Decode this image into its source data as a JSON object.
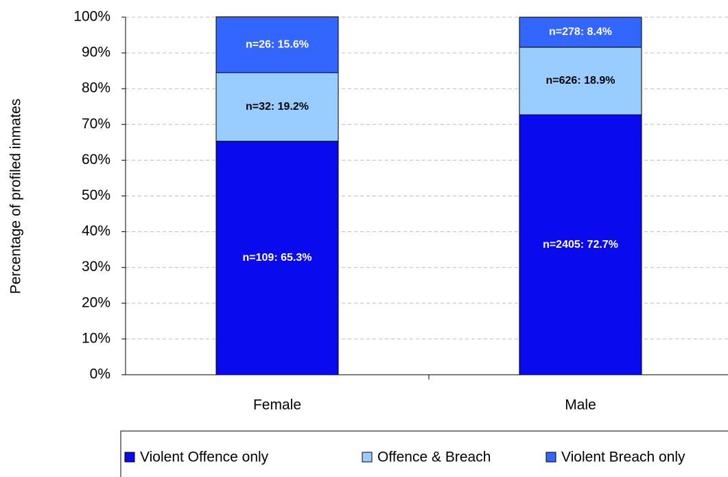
{
  "chart_data": {
    "type": "stacked_bar",
    "y_label": "Percentage of profiled inmates",
    "categories": [
      "Female",
      "Male"
    ],
    "series": [
      {
        "name": "Violent Offence only",
        "color": "#0a0aee",
        "label_color": "#ffffff",
        "values": [
          65.3,
          72.7
        ],
        "value_labels": [
          "n=109: 65.3%",
          "n=2405: 72.7%"
        ]
      },
      {
        "name": "Offence & Breach",
        "color": "#99ccff",
        "label_color": "#000000",
        "values": [
          19.2,
          18.9
        ],
        "value_labels": [
          "n=32: 19.2%",
          "n=626: 18.9%"
        ]
      },
      {
        "name": "Violent Breach only",
        "color": "#3366ff",
        "label_color": "#ffffff",
        "values": [
          15.6,
          8.4
        ],
        "value_labels": [
          "n=26: 15.6%",
          "n=278: 8.4%"
        ]
      }
    ],
    "ylim": [
      0,
      100
    ],
    "yticks": [
      {
        "value": 0,
        "label": "0%"
      },
      {
        "value": 10,
        "label": "10%"
      },
      {
        "value": 20,
        "label": "20%"
      },
      {
        "value": 30,
        "label": "30%"
      },
      {
        "value": 40,
        "label": "40%"
      },
      {
        "value": 50,
        "label": "50%"
      },
      {
        "value": 60,
        "label": "60%"
      },
      {
        "value": 70,
        "label": "70%"
      },
      {
        "value": 80,
        "label": "80%"
      },
      {
        "value": 90,
        "label": "90%"
      },
      {
        "value": 100,
        "label": "100%"
      }
    ],
    "grid": true
  }
}
